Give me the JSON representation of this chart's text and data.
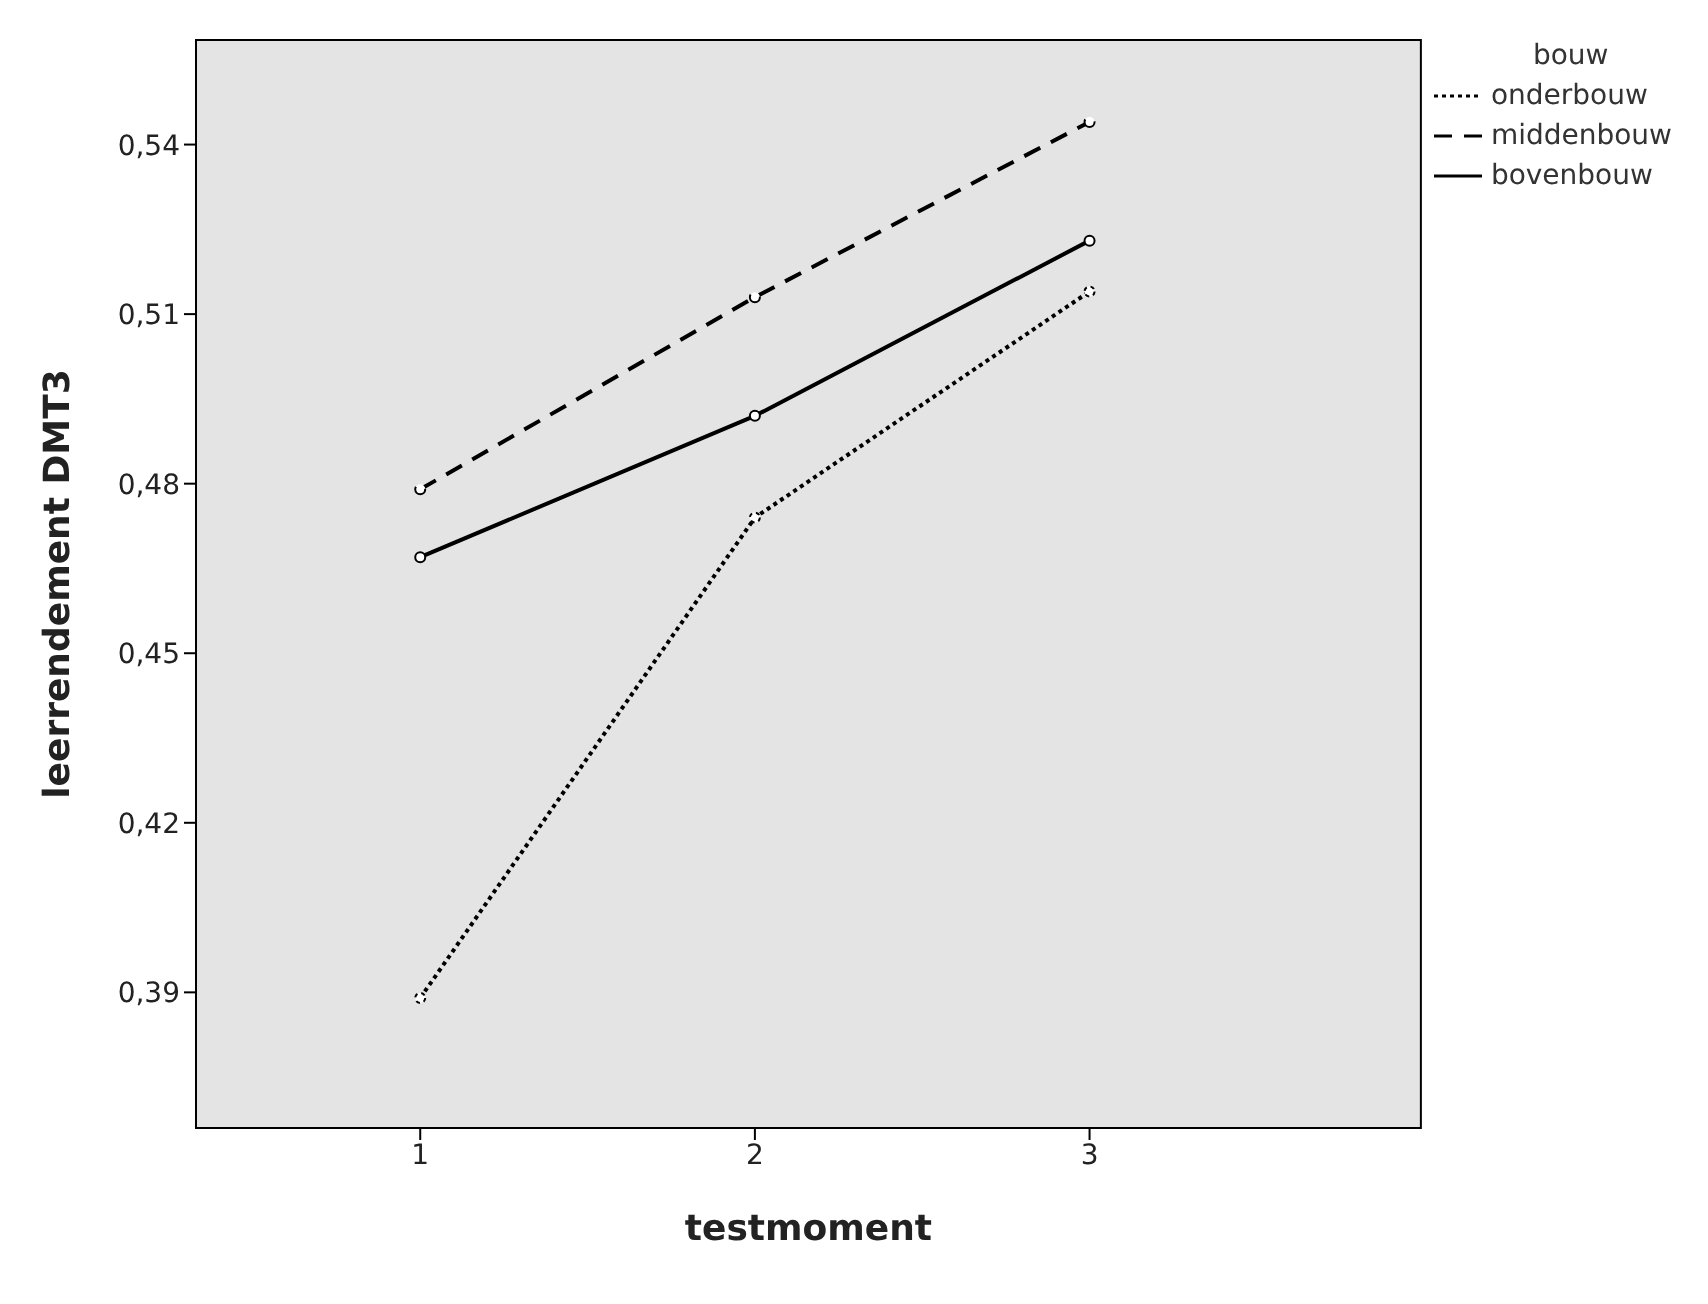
{
  "chart_data": {
    "type": "line",
    "xlabel": "testmoment",
    "ylabel": "leerrendement DMT3",
    "legend_title": "bouw",
    "legend": "top right",
    "grid": false,
    "marker": "circle",
    "x": [
      1,
      2,
      3
    ],
    "xlim": [
      0.33,
      3.99
    ],
    "xticks": [
      1,
      2,
      3
    ],
    "ylim": [
      0.366,
      0.5585
    ],
    "yticks": [
      {
        "value": 0.39,
        "label": "0,39"
      },
      {
        "value": 0.42,
        "label": "0,42"
      },
      {
        "value": 0.45,
        "label": "0,45"
      },
      {
        "value": 0.48,
        "label": "0,48"
      },
      {
        "value": 0.51,
        "label": "0,51"
      },
      {
        "value": 0.54,
        "label": "0,54"
      }
    ],
    "series": [
      {
        "name": "onderbouw",
        "color": "#000000",
        "line_style": "dotted",
        "values": [
          0.389,
          0.474,
          0.514
        ]
      },
      {
        "name": "middenbouw",
        "color": "#000000",
        "line_style": "dashed",
        "values": [
          0.479,
          0.513,
          0.544
        ]
      },
      {
        "name": "bovenbouw",
        "color": "#000000",
        "line_style": "solid",
        "values": [
          0.467,
          0.492,
          0.523
        ]
      }
    ]
  }
}
